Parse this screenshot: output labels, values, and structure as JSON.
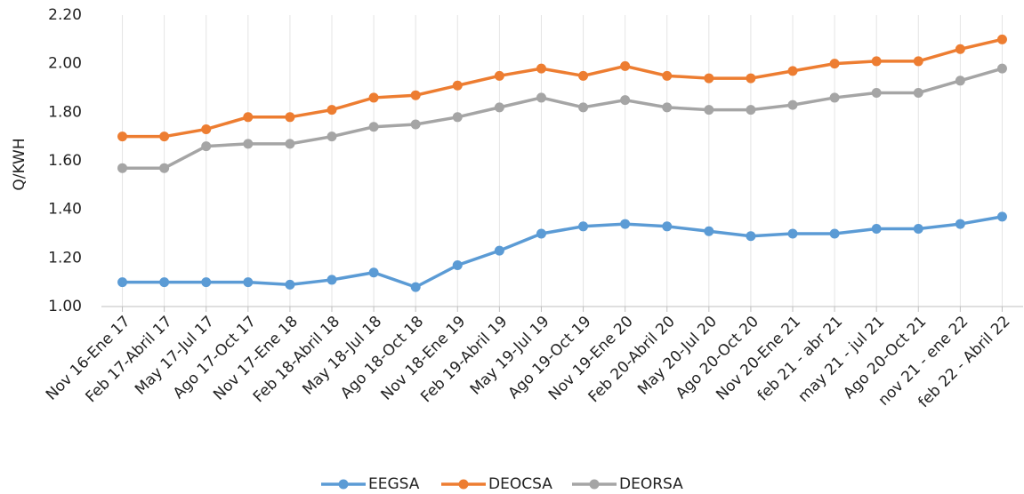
{
  "chart_data": {
    "type": "line",
    "ylabel": "Q/KWH",
    "categories": [
      "Nov 16-Ene 17",
      "Feb 17-Abril 17",
      "May 17-Jul 17",
      "Ago 17-Oct 17",
      "Nov 17-Ene 18",
      "Feb 18-Abril 18",
      "May 18-Jul 18",
      "Ago 18-Oct 18",
      "Nov 18-Ene 19",
      "Feb 19-Abril 19",
      "May 19-Jul 19",
      "Ago 19-Oct 19",
      "Nov 19-Ene 20",
      "Feb 20-Abril 20",
      "May 20-Jul 20",
      "Ago 20-Oct 20",
      "Nov 20-Ene 21",
      "feb 21 - abr 21",
      "may 21 - jul 21",
      "Ago 20-Oct 21",
      "nov 21 - ene 22",
      "feb 22 - Abril 22"
    ],
    "series": [
      {
        "name": "EEGSA",
        "color": "#5b9bd5",
        "values": [
          1.1,
          1.1,
          1.1,
          1.1,
          1.09,
          1.11,
          1.14,
          1.08,
          1.17,
          1.23,
          1.3,
          1.33,
          1.34,
          1.33,
          1.31,
          1.29,
          1.3,
          1.3,
          1.32,
          1.32,
          1.34,
          1.37
        ]
      },
      {
        "name": "DEOCSA",
        "color": "#ed7d31",
        "values": [
          1.7,
          1.7,
          1.73,
          1.78,
          1.78,
          1.81,
          1.86,
          1.87,
          1.91,
          1.95,
          1.98,
          1.95,
          1.99,
          1.95,
          1.94,
          1.94,
          1.97,
          2.0,
          2.01,
          2.01,
          2.06,
          2.1
        ]
      },
      {
        "name": "DEORSA",
        "color": "#a5a5a5",
        "values": [
          1.57,
          1.57,
          1.66,
          1.67,
          1.67,
          1.7,
          1.74,
          1.75,
          1.78,
          1.82,
          1.86,
          1.82,
          1.85,
          1.82,
          1.81,
          1.81,
          1.83,
          1.86,
          1.88,
          1.88,
          1.93,
          1.98
        ]
      }
    ],
    "ylim": [
      1.0,
      2.2
    ],
    "yticks": [
      {
        "value": 1.0,
        "label": "1.00"
      },
      {
        "value": 1.2,
        "label": "1.20"
      },
      {
        "value": 1.4,
        "label": "1.40"
      },
      {
        "value": 1.6,
        "label": "1.60"
      },
      {
        "value": 1.8,
        "label": "1.80"
      },
      {
        "value": 2.0,
        "label": "2.00"
      },
      {
        "value": 2.2,
        "label": "2.20"
      }
    ],
    "legend": "bottom"
  }
}
